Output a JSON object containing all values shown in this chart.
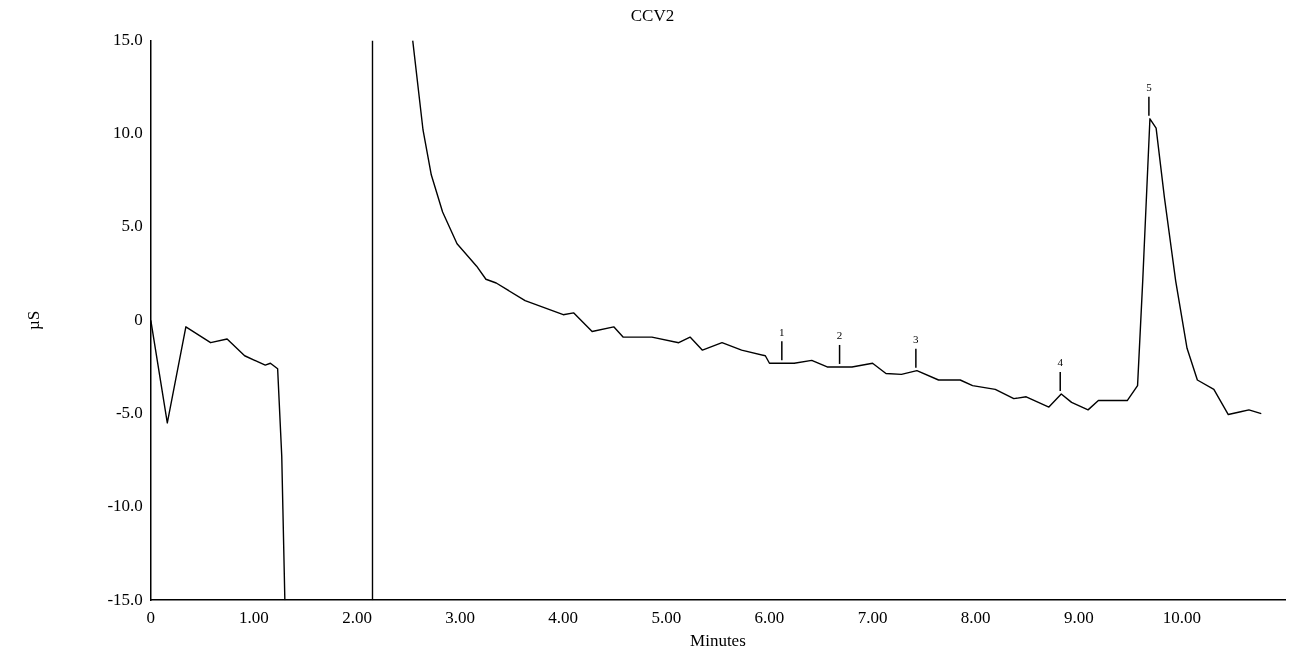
{
  "chart_data": {
    "type": "line",
    "title": "CCV2",
    "xlabel": "Minutes",
    "ylabel": "µS",
    "xlim": [
      0,
      11.0
    ],
    "ylim": [
      -15,
      15
    ],
    "xticks": [
      0,
      {
        "value": 1,
        "label": "1.00"
      },
      {
        "value": 2,
        "label": "2.00"
      },
      {
        "value": 3,
        "label": "3.00"
      },
      {
        "value": 4,
        "label": "4.00"
      },
      {
        "value": 5,
        "label": "5.00"
      },
      {
        "value": 6,
        "label": "6.00"
      },
      {
        "value": 7,
        "label": "7.00"
      },
      {
        "value": 8,
        "label": "8.00"
      },
      {
        "value": 9,
        "label": "9.00"
      },
      {
        "value": 10,
        "label": "10.00"
      }
    ],
    "yticks": [
      {
        "value": -15,
        "label": "-15.0"
      },
      {
        "value": -10,
        "label": "-10.0"
      },
      {
        "value": -5,
        "label": "-5.0"
      },
      0,
      {
        "value": 5,
        "label": "5.0"
      },
      {
        "value": 10,
        "label": "10.0"
      },
      {
        "value": 15,
        "label": "15.0"
      }
    ],
    "grid": false,
    "legend": false,
    "marker": "none",
    "line_style": "solid",
    "series": [
      {
        "color": "#000000",
        "x": [
          0,
          0.16,
          0.34,
          0.58,
          0.74,
          0.91,
          1.11,
          1.16,
          1.23,
          1.27,
          1.3,
          1.7,
          2.15,
          2.15,
          2.35,
          2.54,
          2.64,
          2.72,
          2.83,
          2.97,
          3.16,
          3.25,
          3.35,
          3.63,
          4.0,
          4.1,
          4.28,
          4.49,
          4.58,
          4.86,
          5.12,
          5.23,
          5.35,
          5.54,
          5.73,
          5.96,
          6.0,
          6.24,
          6.41,
          6.56,
          6.8,
          7.0,
          7.13,
          7.28,
          7.43,
          7.64,
          7.85,
          7.97,
          8.19,
          8.37,
          8.49,
          8.71,
          8.83,
          8.93,
          9.09,
          9.19,
          9.47,
          9.57,
          9.62,
          9.69,
          9.75,
          9.83,
          9.94,
          10.05,
          10.15,
          10.31,
          10.45,
          10.57,
          10.65,
          10.77
        ],
        "values": [
          0,
          -5.5,
          -0.35,
          -1.2,
          -1.0,
          -1.9,
          -2.4,
          -2.3,
          -2.6,
          -7.3,
          -15,
          null,
          -15,
          15,
          null,
          15,
          10.2,
          7.8,
          5.8,
          4.1,
          2.9,
          2.2,
          2.0,
          1.05,
          0.3,
          0.4,
          -0.6,
          -0.35,
          -0.9,
          -0.9,
          -1.2,
          -0.9,
          -1.6,
          -1.2,
          -1.6,
          -1.9,
          -2.3,
          -2.3,
          -2.15,
          -2.5,
          -2.5,
          -2.3,
          -2.85,
          -2.9,
          -2.7,
          -3.2,
          -3.2,
          -3.5,
          -3.7,
          -4.2,
          -4.1,
          -4.65,
          -3.95,
          -4.4,
          -4.8,
          -4.3,
          -4.3,
          -3.5,
          2.1,
          10.8,
          10.3,
          6.6,
          2.1,
          -1.5,
          -3.2,
          -3.7,
          -5.05,
          -4.9,
          -4.8,
          -5.0
        ]
      }
    ],
    "annotations": [
      {
        "text": "1",
        "x": 6.12,
        "y": -2.3
      },
      {
        "text": "2",
        "x": 6.68,
        "y": -2.5
      },
      {
        "text": "3",
        "x": 7.42,
        "y": -2.7
      },
      {
        "text": "4",
        "x": 8.82,
        "y": -3.95
      },
      {
        "text": "5",
        "x": 9.68,
        "y": 10.8
      }
    ]
  }
}
